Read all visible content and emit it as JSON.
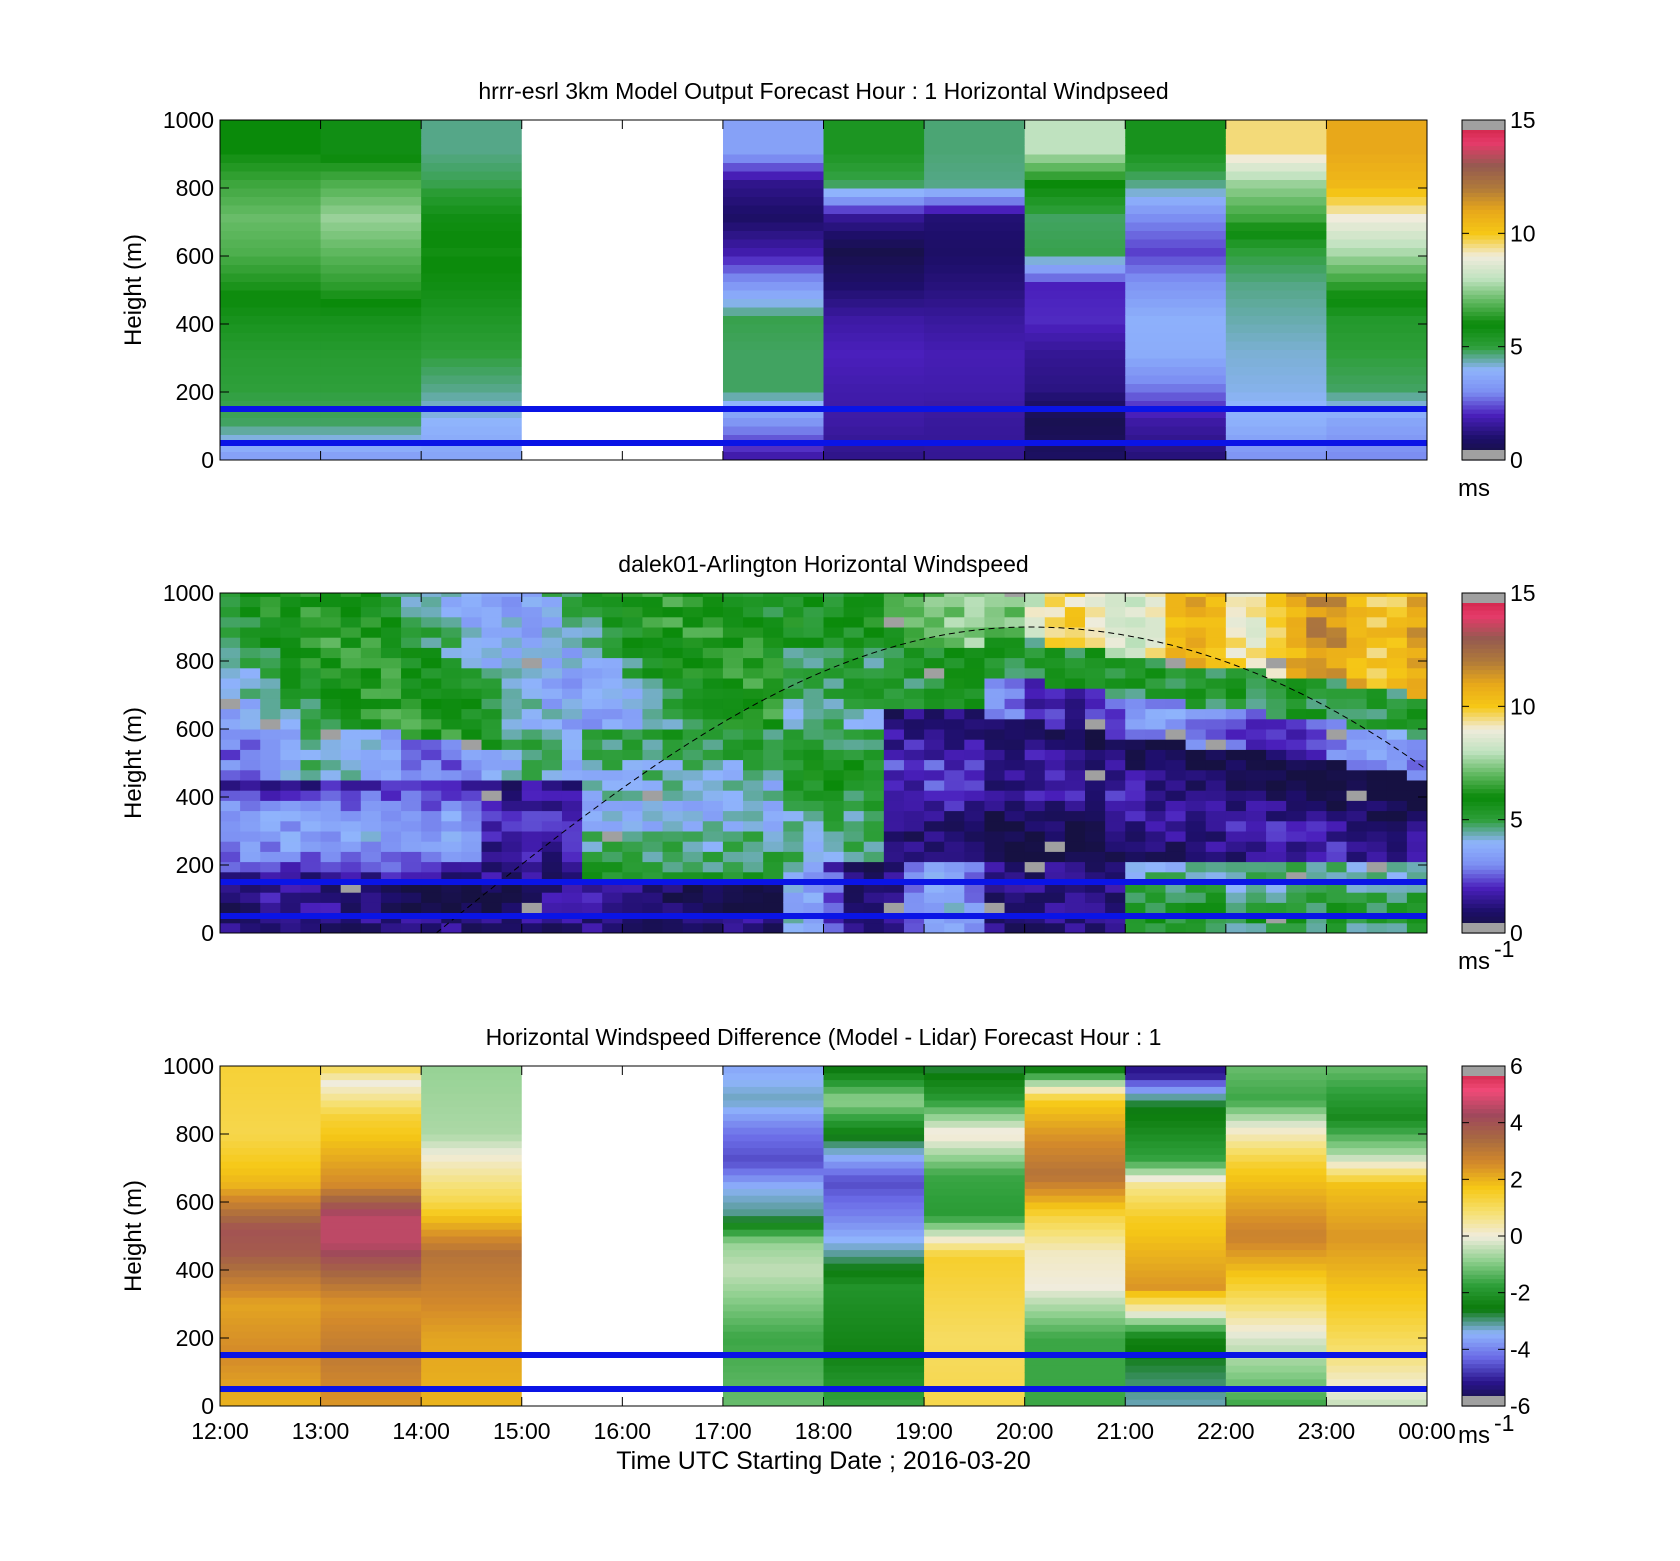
{
  "chart_data": [
    {
      "type": "heatmap",
      "title": "hrrr-esrl 3km Model Output   Forecast Hour : 1 Horizontal Windpseed",
      "ylabel": "Height (m)",
      "xlabel": "",
      "ylim": [
        0,
        1000
      ],
      "yticks": [
        "0",
        "200",
        "400",
        "600",
        "800",
        "1000"
      ],
      "xlim_hours": [
        12,
        24
      ],
      "colorbar": {
        "min": 0,
        "max": 15,
        "ticks": [
          "0",
          "5",
          "10",
          "15"
        ],
        "unit": "ms",
        "unit_sup": ""
      },
      "palette": "speed",
      "blank_hours": [
        [
          15,
          17
        ]
      ],
      "value_grid": {
        "x_start_hours": [
          12,
          13,
          14,
          17,
          18,
          19,
          20,
          21,
          22,
          23
        ],
        "x_width_hours": 1,
        "y_bounds_m": [
          0,
          100,
          200,
          300,
          400,
          500,
          600,
          700,
          800,
          900,
          1000
        ],
        "values_by_column": [
          [
            3.5,
            4.8,
            5.0,
            5.2,
            5.6,
            6.2,
            6.8,
            7.1,
            6.6,
            6.0
          ],
          [
            3.5,
            4.8,
            5.0,
            5.2,
            5.6,
            6.4,
            7.0,
            7.6,
            6.8,
            5.8
          ],
          [
            3.6,
            4.0,
            4.6,
            5.0,
            5.4,
            5.8,
            6.1,
            5.8,
            4.9,
            4.6
          ],
          [
            1.8,
            3.2,
            4.8,
            4.8,
            4.9,
            3.3,
            1.8,
            0.9,
            1.4,
            3.5
          ],
          [
            1.4,
            1.7,
            1.8,
            2.0,
            1.7,
            1.0,
            0.4,
            1.5,
            4.8,
            5.5
          ],
          [
            1.5,
            1.6,
            1.8,
            1.9,
            1.6,
            1.2,
            0.9,
            1.1,
            4.6,
            4.7
          ],
          [
            0.8,
            0.5,
            1.3,
            1.5,
            2.1,
            2.0,
            4.9,
            4.8,
            6.0,
            8.0
          ],
          [
            1.2,
            1.7,
            2.8,
            3.8,
            3.9,
            3.2,
            2.3,
            3.0,
            4.6,
            5.6
          ],
          [
            3.2,
            3.9,
            4.1,
            4.2,
            4.4,
            4.6,
            5.0,
            6.6,
            7.6,
            9.5
          ],
          [
            3.0,
            3.6,
            4.8,
            5.0,
            5.3,
            6.4,
            7.8,
            9.0,
            10.5,
            11.0
          ]
        ]
      },
      "reference_lines_m": [
        150,
        50
      ]
    },
    {
      "type": "heatmap",
      "title": "dalek01-Arlington  Horizontal Windspeed",
      "ylabel": "Height (m)",
      "xlabel": "",
      "ylim": [
        0,
        1000
      ],
      "yticks": [
        "0",
        "200",
        "400",
        "600",
        "800",
        "1000"
      ],
      "xlim_hours": [
        12,
        24
      ],
      "colorbar": {
        "min": 0,
        "max": 15,
        "ticks": [
          "0",
          "5",
          "10",
          "15"
        ],
        "unit": "ms",
        "unit_sup": "-1"
      },
      "palette": "speed",
      "blank_hours": [],
      "data_end_hour": 23.9,
      "time_resolution_minutes": 12,
      "height_resolution_m": 30,
      "sun_elevation_curve": {
        "start_hour": 14.15,
        "peak_hour": 20.05,
        "end_hour": 24,
        "peak_m": 900,
        "end_m": 480
      },
      "reference_lines_m": [
        150,
        50
      ]
    },
    {
      "type": "heatmap",
      "title": "Horizontal Windspeed Difference (Model - Lidar) Forecast Hour : 1",
      "ylabel": "Height (m)",
      "xlabel": "Time UTC  Starting Date ; 2016-03-20",
      "ylim": [
        0,
        1000
      ],
      "yticks": [
        "0",
        "200",
        "400",
        "600",
        "800",
        "1000"
      ],
      "xticks": [
        "12:00",
        "13:00",
        "14:00",
        "15:00",
        "16:00",
        "17:00",
        "18:00",
        "19:00",
        "20:00",
        "21:00",
        "22:00",
        "23:00",
        "00:00"
      ],
      "xlim_hours": [
        12,
        24
      ],
      "colorbar": {
        "min": -6,
        "max": 6,
        "ticks": [
          "-6",
          "-4",
          "-2",
          "0",
          "2",
          "4",
          "6"
        ],
        "unit": "ms",
        "unit_sup": "-1"
      },
      "palette": "diff",
      "blank_hours": [
        [
          15,
          17
        ]
      ],
      "profiles_by_hour": [
        {
          "hour": 12,
          "points": [
            [
              0,
              2.0
            ],
            [
              150,
              2.6
            ],
            [
              300,
              2.2
            ],
            [
              450,
              3.8
            ],
            [
              520,
              4.0
            ],
            [
              650,
              2.0
            ],
            [
              800,
              1.2
            ],
            [
              1000,
              1.4
            ]
          ]
        },
        {
          "hour": 13,
          "points": [
            [
              0,
              2.4
            ],
            [
              150,
              3.0
            ],
            [
              300,
              2.4
            ],
            [
              480,
              4.6
            ],
            [
              560,
              4.6
            ],
            [
              650,
              2.6
            ],
            [
              850,
              1.4
            ],
            [
              950,
              0.0
            ],
            [
              1000,
              1.2
            ]
          ]
        },
        {
          "hour": 14,
          "points": [
            [
              0,
              2.0
            ],
            [
              200,
              2.2
            ],
            [
              450,
              3.2
            ],
            [
              600,
              1.2
            ],
            [
              720,
              0.2
            ],
            [
              800,
              -0.6
            ],
            [
              1000,
              -0.8
            ]
          ]
        },
        {
          "hour": 17,
          "points": [
            [
              0,
              -1.2
            ],
            [
              200,
              -1.6
            ],
            [
              400,
              -0.4
            ],
            [
              480,
              -0.8
            ],
            [
              560,
              -3.0
            ],
            [
              640,
              -3.4
            ],
            [
              720,
              -4.6
            ],
            [
              800,
              -4.2
            ],
            [
              900,
              -3.2
            ],
            [
              1000,
              -3.6
            ]
          ]
        },
        {
          "hour": 18,
          "points": [
            [
              0,
              -1.6
            ],
            [
              150,
              -2.4
            ],
            [
              350,
              -2.0
            ],
            [
              460,
              -3.2
            ],
            [
              560,
              -4.0
            ],
            [
              660,
              -4.6
            ],
            [
              780,
              -2.8
            ],
            [
              900,
              -0.8
            ],
            [
              1000,
              -2.8
            ]
          ]
        },
        {
          "hour": 19,
          "points": [
            [
              0,
              1.2
            ],
            [
              200,
              1.0
            ],
            [
              440,
              1.5
            ],
            [
              560,
              -1.8
            ],
            [
              680,
              -1.6
            ],
            [
              800,
              0.2
            ],
            [
              900,
              -1.8
            ],
            [
              1000,
              -2.8
            ]
          ]
        },
        {
          "hour": 20,
          "points": [
            [
              0,
              -1.6
            ],
            [
              200,
              -1.6
            ],
            [
              350,
              0.0
            ],
            [
              450,
              0.2
            ],
            [
              550,
              1.2
            ],
            [
              680,
              3.2
            ],
            [
              800,
              2.4
            ],
            [
              900,
              1.6
            ],
            [
              1000,
              -2.8
            ]
          ]
        },
        {
          "hour": 21,
          "points": [
            [
              0,
              -3.2
            ],
            [
              200,
              -2.4
            ],
            [
              350,
              2.4
            ],
            [
              550,
              1.6
            ],
            [
              650,
              0.6
            ],
            [
              720,
              -1.6
            ],
            [
              900,
              -2.8
            ],
            [
              970,
              -5.0
            ],
            [
              1000,
              -5.2
            ]
          ]
        },
        {
          "hour": 22,
          "points": [
            [
              0,
              -1.6
            ],
            [
              200,
              -0.2
            ],
            [
              350,
              1.4
            ],
            [
              500,
              2.8
            ],
            [
              700,
              1.6
            ],
            [
              820,
              0.0
            ],
            [
              900,
              -1.6
            ],
            [
              1000,
              -1.2
            ]
          ]
        },
        {
          "hour": 23,
          "points": [
            [
              0,
              -0.4
            ],
            [
              150,
              0.8
            ],
            [
              300,
              1.6
            ],
            [
              500,
              2.4
            ],
            [
              650,
              1.8
            ],
            [
              740,
              -0.6
            ],
            [
              850,
              -2.2
            ],
            [
              1000,
              -1.2
            ]
          ]
        }
      ],
      "reference_lines_m": [
        150,
        50
      ]
    }
  ],
  "colors": {
    "reference_line": "#0a14e6",
    "missing": "#a0a0a0",
    "speed_palette": [
      "#141238",
      "#1e0f6b",
      "#4a1fbc",
      "#7c8ef2",
      "#8fb4fc",
      "#2e9f3a",
      "#0a8a0a",
      "#5fb85f",
      "#bfe2bf",
      "#f0ecdc",
      "#f6c816",
      "#e8a81a",
      "#b07a3a",
      "#955a50",
      "#e63a6a",
      "#c81e3c"
    ],
    "diff_palette": [
      "#141238",
      "#2a148c",
      "#6a6ae6",
      "#8fb4fc",
      "#0a7a0a",
      "#2e9f3a",
      "#8fd08f",
      "#f0ecdc",
      "#f6e070",
      "#f6c816",
      "#d48a2a",
      "#a86a40",
      "#a0485c",
      "#f04a78",
      "#c81e3c"
    ]
  }
}
